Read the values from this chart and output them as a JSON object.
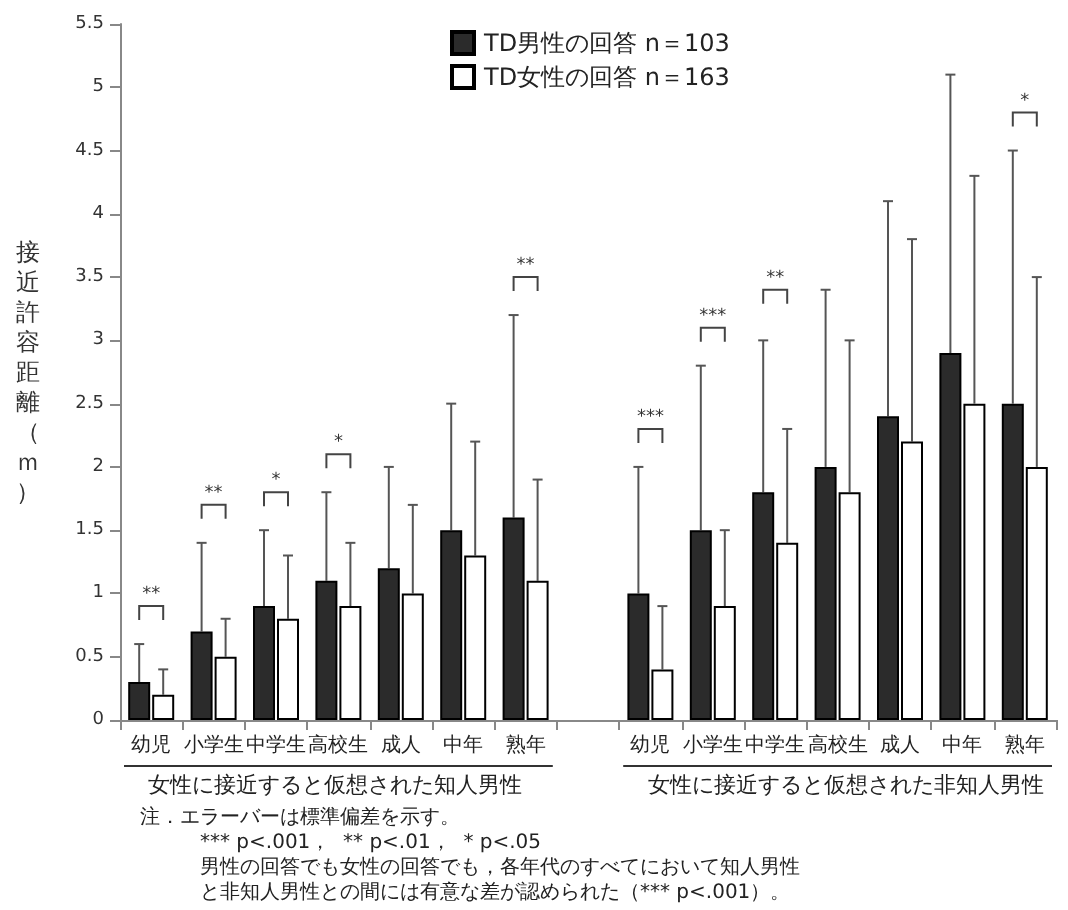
{
  "chart_data": {
    "type": "bar",
    "ylabel": "接近許容距離（ｍ）",
    "categories": [
      "幼児",
      "小学生",
      "中学生",
      "高校生",
      "成人",
      "中年",
      "熟年",
      null,
      "幼児",
      "小学生",
      "中学生",
      "高校生",
      "成人",
      "中年",
      "熟年"
    ],
    "series": [
      {
        "name": "TD男性の回答 n＝103",
        "color": "#2b2b2b",
        "values": [
          0.3,
          0.7,
          0.9,
          1.1,
          1.2,
          1.5,
          1.6,
          null,
          1.0,
          1.5,
          1.8,
          2.0,
          2.4,
          2.9,
          2.5
        ],
        "errors": [
          [
            0.3,
            0.6
          ],
          [
            0.7,
            1.4
          ],
          [
            0.9,
            1.5
          ],
          [
            1.1,
            1.8
          ],
          [
            1.2,
            2.0
          ],
          [
            1.5,
            2.5
          ],
          [
            1.6,
            3.2
          ],
          null,
          [
            1.0,
            2.0
          ],
          [
            1.5,
            2.8
          ],
          [
            1.8,
            3.0
          ],
          [
            2.0,
            3.4
          ],
          [
            2.4,
            4.1
          ],
          [
            2.9,
            5.1
          ],
          [
            2.5,
            4.5
          ]
        ]
      },
      {
        "name": "TD女性の回答 n＝163",
        "color": "#ffffff",
        "values": [
          0.2,
          0.5,
          0.8,
          0.9,
          1.0,
          1.3,
          1.1,
          null,
          0.4,
          0.9,
          1.4,
          1.8,
          2.2,
          2.5,
          2.0
        ],
        "errors": [
          [
            0.2,
            0.4
          ],
          [
            0.5,
            0.8
          ],
          [
            0.8,
            1.3
          ],
          [
            0.9,
            1.4
          ],
          [
            1.0,
            1.7
          ],
          [
            1.3,
            2.2
          ],
          [
            1.1,
            1.9
          ],
          null,
          [
            0.4,
            0.9
          ],
          [
            0.9,
            1.5
          ],
          [
            1.4,
            2.3
          ],
          [
            1.8,
            3.0
          ],
          [
            2.2,
            3.8
          ],
          [
            2.5,
            4.3
          ],
          [
            2.0,
            3.5
          ]
        ]
      }
    ],
    "ylim": [
      0,
      5.5
    ],
    "yticks": [
      0,
      0.5,
      1,
      1.5,
      2,
      2.5,
      3,
      3.5,
      4,
      4.5,
      5,
      5.5
    ],
    "grid": false,
    "legend": "top",
    "annotations": [
      "**",
      "**",
      "*",
      "*",
      "**",
      "***",
      "***",
      "**",
      "*",
      "女性に接近すると仮想された知人男性",
      "女性に接近すると仮想された非知人男性",
      "注．エラーバーは標準偏差を示す。",
      "*** p<.001，  ** p<.01，  * p<.05",
      "男性の回答でも女性の回答でも，各年代のすべてにおいて知人男性",
      "と非知人男性との間には有意な差が認められた（*** p<.001）。"
    ]
  }
}
